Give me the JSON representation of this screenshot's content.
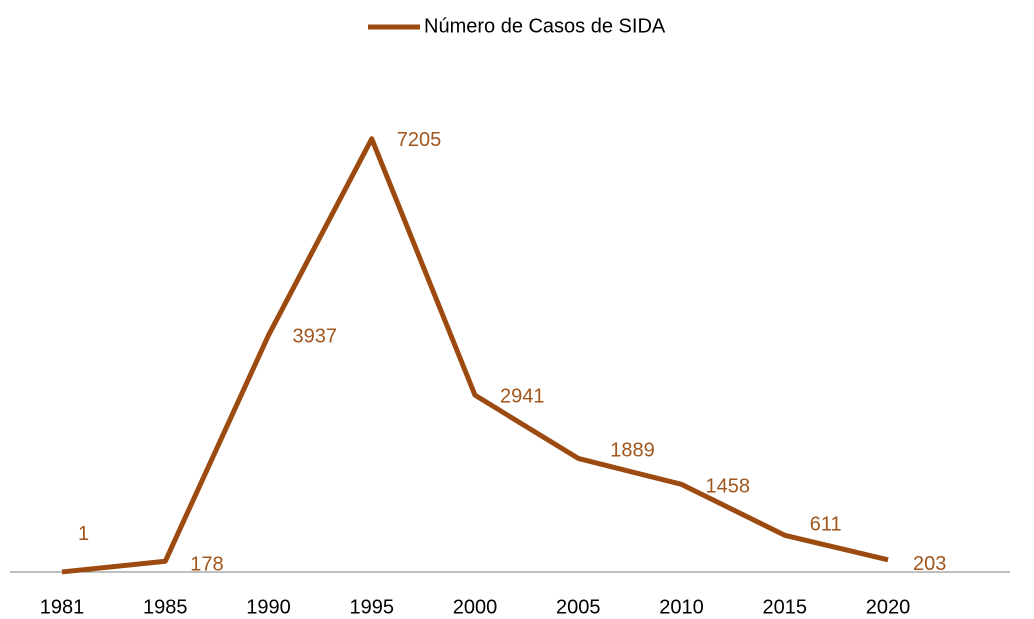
{
  "chart_data": {
    "type": "line",
    "categories": [
      "1981",
      "1985",
      "1990",
      "1995",
      "2000",
      "2005",
      "2010",
      "2015",
      "2020"
    ],
    "series": [
      {
        "name": "Número de Casos de SIDA",
        "color": "#9c4a10",
        "values": [
          1,
          178,
          3937,
          7205,
          2941,
          1889,
          1458,
          611,
          203
        ]
      }
    ],
    "ylim": [
      0,
      8000
    ],
    "legend": "top"
  }
}
